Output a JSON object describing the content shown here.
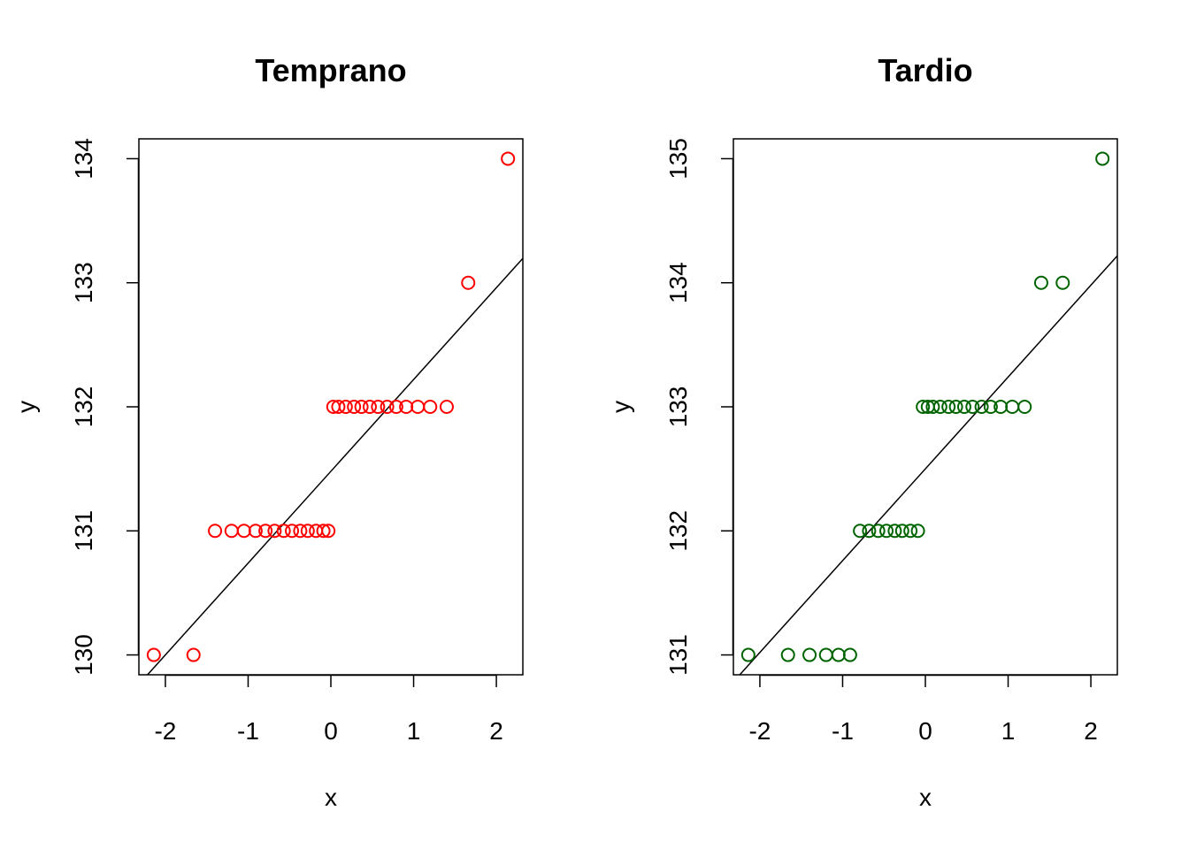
{
  "chart_data": [
    {
      "type": "scatter",
      "title": "Temprano",
      "xlabel": "x",
      "ylabel": "y",
      "xlim": [
        -2.32,
        2.32
      ],
      "ylim": [
        129.84,
        134.16
      ],
      "xticks": [
        -2,
        -1,
        0,
        1,
        2
      ],
      "xtick_labels": [
        "-2",
        "-1",
        "0",
        "1",
        "2"
      ],
      "yticks": [
        130,
        131,
        132,
        133,
        134
      ],
      "ytick_labels": [
        "130",
        "131",
        "132",
        "133",
        "134"
      ],
      "grid": false,
      "color": "#ff0000",
      "points": [
        {
          "x": -2.14,
          "y": 130
        },
        {
          "x": -1.66,
          "y": 130
        },
        {
          "x": -1.4,
          "y": 131
        },
        {
          "x": -1.2,
          "y": 131
        },
        {
          "x": -1.05,
          "y": 131
        },
        {
          "x": -0.91,
          "y": 131
        },
        {
          "x": -0.79,
          "y": 131
        },
        {
          "x": -0.68,
          "y": 131
        },
        {
          "x": -0.57,
          "y": 131
        },
        {
          "x": -0.47,
          "y": 131
        },
        {
          "x": -0.37,
          "y": 131
        },
        {
          "x": -0.28,
          "y": 131
        },
        {
          "x": -0.18,
          "y": 131
        },
        {
          "x": -0.09,
          "y": 131
        },
        {
          "x": -0.03,
          "y": 131
        },
        {
          "x": 0.03,
          "y": 132
        },
        {
          "x": 0.09,
          "y": 132
        },
        {
          "x": 0.18,
          "y": 132
        },
        {
          "x": 0.28,
          "y": 132
        },
        {
          "x": 0.37,
          "y": 132
        },
        {
          "x": 0.47,
          "y": 132
        },
        {
          "x": 0.57,
          "y": 132
        },
        {
          "x": 0.68,
          "y": 132
        },
        {
          "x": 0.79,
          "y": 132
        },
        {
          "x": 0.91,
          "y": 132
        },
        {
          "x": 1.05,
          "y": 132
        },
        {
          "x": 1.2,
          "y": 132
        },
        {
          "x": 1.4,
          "y": 132
        },
        {
          "x": 1.66,
          "y": 133
        },
        {
          "x": 2.14,
          "y": 134
        }
      ],
      "reference_line": {
        "intercept": 131.48,
        "slope": 0.74
      }
    },
    {
      "type": "scatter",
      "title": "Tardio",
      "xlabel": "x",
      "ylabel": "y",
      "xlim": [
        -2.32,
        2.32
      ],
      "ylim": [
        130.84,
        135.16
      ],
      "xticks": [
        -2,
        -1,
        0,
        1,
        2
      ],
      "xtick_labels": [
        "-2",
        "-1",
        "0",
        "1",
        "2"
      ],
      "yticks": [
        131,
        132,
        133,
        134,
        135
      ],
      "ytick_labels": [
        "131",
        "132",
        "133",
        "134",
        "135"
      ],
      "grid": false,
      "color": "#006400",
      "points": [
        {
          "x": -2.14,
          "y": 131
        },
        {
          "x": -1.66,
          "y": 131
        },
        {
          "x": -1.4,
          "y": 131
        },
        {
          "x": -1.2,
          "y": 131
        },
        {
          "x": -1.05,
          "y": 131
        },
        {
          "x": -0.91,
          "y": 131
        },
        {
          "x": -0.79,
          "y": 132
        },
        {
          "x": -0.68,
          "y": 132
        },
        {
          "x": -0.57,
          "y": 132
        },
        {
          "x": -0.47,
          "y": 132
        },
        {
          "x": -0.37,
          "y": 132
        },
        {
          "x": -0.28,
          "y": 132
        },
        {
          "x": -0.18,
          "y": 132
        },
        {
          "x": -0.09,
          "y": 132
        },
        {
          "x": -0.03,
          "y": 133
        },
        {
          "x": 0.03,
          "y": 133
        },
        {
          "x": 0.09,
          "y": 133
        },
        {
          "x": 0.18,
          "y": 133
        },
        {
          "x": 0.28,
          "y": 133
        },
        {
          "x": 0.37,
          "y": 133
        },
        {
          "x": 0.47,
          "y": 133
        },
        {
          "x": 0.57,
          "y": 133
        },
        {
          "x": 0.68,
          "y": 133
        },
        {
          "x": 0.79,
          "y": 133
        },
        {
          "x": 0.91,
          "y": 133
        },
        {
          "x": 1.05,
          "y": 133
        },
        {
          "x": 1.2,
          "y": 133
        },
        {
          "x": 1.4,
          "y": 134
        },
        {
          "x": 1.66,
          "y": 134
        },
        {
          "x": 2.14,
          "y": 135
        }
      ],
      "reference_line": {
        "intercept": 132.5,
        "slope": 0.74
      }
    }
  ]
}
